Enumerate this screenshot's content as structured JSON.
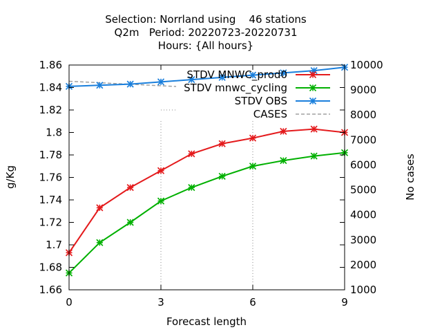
{
  "chart_data": {
    "type": "line",
    "title": [
      "Selection: Norrland using    46 stations",
      "Q2m   Period: 20220723-20220731",
      "Hours: {All hours}"
    ],
    "xlabel": "Forecast length",
    "ylabel": "g/Kg",
    "y2label": "No cases",
    "xlim": [
      0,
      9
    ],
    "ylim": [
      1.66,
      1.86
    ],
    "y2lim": [
      1000,
      10000
    ],
    "x_ticks": [
      0,
      3,
      6,
      9
    ],
    "y_ticks": [
      1.66,
      1.68,
      1.7,
      1.72,
      1.74,
      1.76,
      1.78,
      1.8,
      1.82,
      1.84,
      1.86
    ],
    "y_tick_labels": [
      "1.66",
      "1.68",
      "1.7",
      "1.72",
      "1.74",
      "1.76",
      "1.78",
      "1.8",
      "1.82",
      "1.84",
      "1.86"
    ],
    "y2_ticks": [
      1000,
      2000,
      3000,
      4000,
      5000,
      6000,
      7000,
      8000,
      9000,
      10000
    ],
    "x": [
      0,
      1,
      2,
      3,
      4,
      5,
      6,
      7,
      8,
      9
    ],
    "series": [
      {
        "name": "STDV MNWC_prod0",
        "axis": "y",
        "color": "#e41a1c",
        "marker": "star",
        "dash": "",
        "values": [
          1.693,
          1.733,
          1.751,
          1.766,
          1.781,
          1.79,
          1.795,
          1.801,
          1.803,
          1.8
        ]
      },
      {
        "name": "STDV mnwc_cycling",
        "axis": "y",
        "color": "#00b000",
        "marker": "star",
        "dash": "",
        "values": [
          1.675,
          1.702,
          1.72,
          1.739,
          1.751,
          1.761,
          1.77,
          1.775,
          1.779,
          1.782
        ]
      },
      {
        "name": "STDV OBS",
        "axis": "y",
        "color": "#1a7fdc",
        "marker": "star",
        "dash": "",
        "values": [
          1.841,
          1.842,
          1.843,
          1.845,
          1.847,
          1.849,
          1.851,
          1.853,
          1.855,
          1.858
        ]
      },
      {
        "name": "CASES",
        "axis": "y2",
        "color": "#a0a0a0",
        "marker": "none",
        "dash": "5,3",
        "values": [
          9350,
          9290,
          9230,
          9170,
          9110,
          9050,
          8990,
          8930,
          8860,
          8780
        ]
      }
    ],
    "legend_position": "top-right",
    "grid": "partial dotted"
  }
}
